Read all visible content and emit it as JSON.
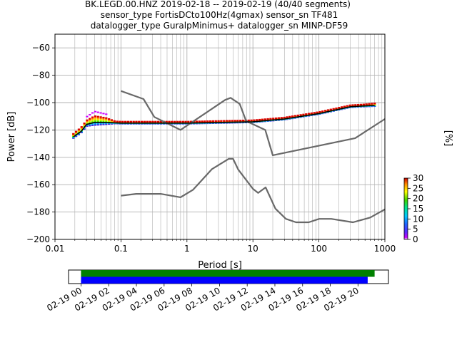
{
  "title_lines": [
    "BK.LEGD.00.HNZ   2019-02-18 -- 2019-02-19  (40/40 segments)",
    "sensor_type FortisDCto100Hz(4gmax) sensor_sn TF481",
    "datalogger_type GuralpMinimus+ datalogger_sn MINP-DF59"
  ],
  "chart_data": [
    {
      "type": "heatmap",
      "title": "BK.LEGD.00.HNZ   2019-02-18 -- 2019-02-19  (40/40 segments)",
      "xlabel": "Period [s]",
      "ylabel": "Power [dB]",
      "xscale": "log",
      "xlim": [
        0.01,
        1000
      ],
      "ylim": [
        -200,
        -50
      ],
      "x_ticks": [
        0.01,
        0.1,
        1,
        10,
        100,
        1000
      ],
      "x_tick_labels": [
        "0.01",
        "0.1",
        "1",
        "10",
        "100",
        "1000"
      ],
      "y_ticks": [
        -200,
        -180,
        -160,
        -140,
        -120,
        -100,
        -80,
        -60
      ],
      "y_tick_labels": [
        "−200",
        "−180",
        "−160",
        "−140",
        "−120",
        "−100",
        "−80",
        "−60"
      ],
      "grid": true,
      "colorbar": {
        "label": "[%]",
        "range": [
          0,
          30
        ],
        "ticks": [
          0,
          5,
          10,
          15,
          20,
          25,
          30
        ],
        "tick_labels": [
          "0",
          "5",
          "10",
          "15",
          "20",
          "25",
          "30"
        ],
        "colormap": "pqlx"
      },
      "series": [
        {
          "role": "noise-model-high",
          "color": "#696969",
          "points": [
            [
              0.1,
              -91.5
            ],
            [
              0.22,
              -97.4
            ],
            [
              0.32,
              -110.5
            ],
            [
              0.8,
              -120.0
            ],
            [
              3.8,
              -98.0
            ],
            [
              4.6,
              -96.5
            ],
            [
              6.3,
              -101.0
            ],
            [
              7.9,
              -113.5
            ],
            [
              15.4,
              -120.0
            ],
            [
              20,
              -138.5
            ],
            [
              354.8,
              -126.0
            ],
            [
              1000,
              -112.0
            ]
          ]
        },
        {
          "role": "noise-model-low",
          "color": "#696969",
          "points": [
            [
              0.1,
              -168.0
            ],
            [
              0.17,
              -166.7
            ],
            [
              0.4,
              -166.7
            ],
            [
              0.8,
              -169.2
            ],
            [
              1.24,
              -163.7
            ],
            [
              2.4,
              -148.6
            ],
            [
              4.3,
              -141.1
            ],
            [
              5.0,
              -141.1
            ],
            [
              6.0,
              -149.0
            ],
            [
              10.0,
              -163.0
            ],
            [
              12.0,
              -166.0
            ],
            [
              15.6,
              -162.0
            ],
            [
              21.9,
              -177.5
            ],
            [
              31.6,
              -185.0
            ],
            [
              45,
              -187.5
            ],
            [
              70,
              -187.5
            ],
            [
              101,
              -185.0
            ],
            [
              154,
              -185.0
            ],
            [
              328,
              -187.5
            ],
            [
              600,
              -184.0
            ],
            [
              1000,
              -178.0
            ]
          ]
        },
        {
          "role": "mean-psd",
          "color": "#000000",
          "points": [
            [
              0.019,
              -125
            ],
            [
              0.025,
              -121
            ],
            [
              0.03,
              -116
            ],
            [
              0.04,
              -114.5
            ],
            [
              0.06,
              -114.5
            ],
            [
              0.1,
              -115
            ],
            [
              1,
              -115
            ],
            [
              10,
              -114
            ],
            [
              30,
              -112
            ],
            [
              100,
              -108
            ],
            [
              300,
              -103
            ],
            [
              700,
              -102
            ]
          ]
        },
        {
          "role": "psd-density-band",
          "points": [
            [
              0.019,
              -122
            ],
            [
              0.025,
              -117
            ],
            [
              0.03,
              -112
            ],
            [
              0.04,
              -108
            ],
            [
              0.06,
              -110
            ],
            [
              0.08,
              -113
            ],
            [
              0.1,
              -114.5
            ],
            [
              1,
              -115
            ],
            [
              10,
              -114
            ],
            [
              30,
              -112
            ],
            [
              100,
              -107
            ],
            [
              300,
              -102
            ],
            [
              700,
              -100
            ]
          ]
        }
      ]
    },
    {
      "type": "timeline",
      "x_tick_labels": [
        "02-19 00",
        "02-19 02",
        "02-19 04",
        "02-19 06",
        "02-19 08",
        "02-19 10",
        "02-19 12",
        "02-19 14",
        "02-19 16",
        "02-19 18",
        "02-19 20"
      ],
      "xlim": [
        "02-18 23:06",
        "02-19 22:12"
      ],
      "bars": [
        {
          "role": "data-coverage",
          "color": "#008000",
          "start": "02-19 00:00",
          "end": "02-19 21:12"
        },
        {
          "role": "psd-segments",
          "color": "#0000ff",
          "start": "02-19 00:00",
          "end": "02-19 20:42"
        }
      ]
    }
  ]
}
